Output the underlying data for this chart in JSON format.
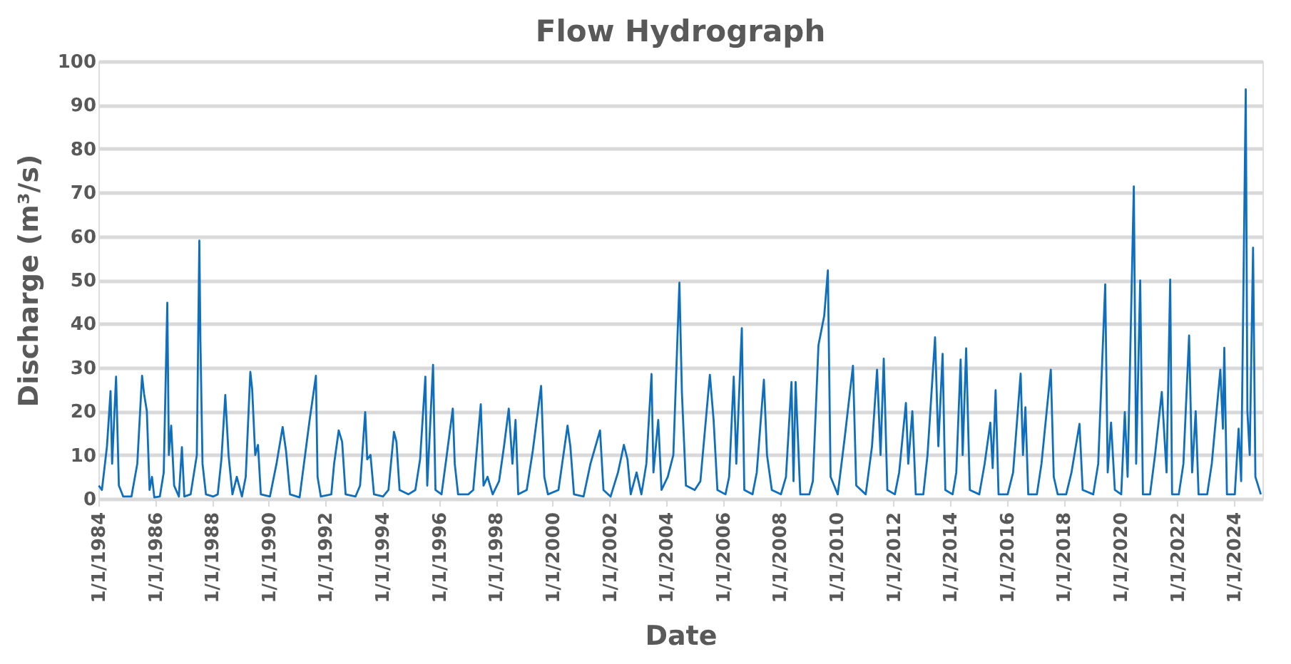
{
  "chart_data": {
    "type": "line",
    "title": "Flow Hydrograph",
    "xlabel": "Date",
    "ylabel": "Discharge (m³/s)",
    "x": [
      "1984-01-05",
      "1984-02-15",
      "1984-04-20",
      "1984-06-05",
      "1984-06-25",
      "1984-08-15",
      "1984-09-20",
      "1984-11-15",
      "1985-03-01",
      "1985-05-15",
      "1985-07-15",
      "1985-08-10",
      "1985-09-15",
      "1985-10-20",
      "1985-11-20",
      "1985-12-20",
      "1986-03-01",
      "1986-04-20",
      "1986-06-05",
      "1986-06-25",
      "1986-07-25",
      "1986-09-01",
      "1986-11-01",
      "1986-12-10",
      "1987-01-10",
      "1987-04-01",
      "1987-06-20",
      "1987-07-22",
      "1987-08-05",
      "1987-09-01",
      "1987-10-15",
      "1988-01-15",
      "1988-03-15",
      "1988-05-01",
      "1988-06-20",
      "1988-08-01",
      "1988-09-20",
      "1988-11-15",
      "1989-01-20",
      "1989-03-10",
      "1989-05-08",
      "1989-06-01",
      "1989-07-10",
      "1989-08-15",
      "1989-09-20",
      "1990-01-15",
      "1990-04-10",
      "1990-06-28",
      "1990-08-10",
      "1990-10-01",
      "1991-02-01",
      "1991-06-10",
      "1991-08-30",
      "1991-09-20",
      "1991-11-01",
      "1992-03-15",
      "1992-04-20",
      "1992-06-18",
      "1992-08-01",
      "1992-09-15",
      "1993-01-20",
      "1993-03-20",
      "1993-05-25",
      "1993-06-20",
      "1993-08-01",
      "1993-09-15",
      "1994-01-10",
      "1994-03-20",
      "1994-05-30",
      "1994-07-01",
      "1994-08-10",
      "1994-12-01",
      "1995-03-01",
      "1995-05-01",
      "1995-07-08",
      "1995-08-01",
      "1995-10-15",
      "1995-11-15",
      "1996-02-01",
      "1996-04-01",
      "1996-06-25",
      "1996-07-20",
      "1996-09-01",
      "1997-01-10",
      "1997-03-15",
      "1997-06-20",
      "1997-07-25",
      "1997-09-15",
      "1997-11-20",
      "1998-02-10",
      "1998-04-15",
      "1998-06-15",
      "1998-08-01",
      "1998-09-10",
      "1998-10-15",
      "1999-02-01",
      "1999-04-20",
      "1999-08-05",
      "1999-09-15",
      "1999-11-01",
      "2000-03-15",
      "2000-07-10",
      "2000-08-15",
      "2000-10-01",
      "2001-02-01",
      "2001-05-01",
      "2001-09-01",
      "2001-10-15",
      "2002-01-15",
      "2002-04-20",
      "2002-07-05",
      "2002-08-20",
      "2002-10-01",
      "2002-12-15",
      "2003-02-15",
      "2003-04-20",
      "2003-06-25",
      "2003-07-20",
      "2003-09-20",
      "2003-11-01",
      "2004-01-20",
      "2004-04-01",
      "2004-06-18",
      "2004-07-20",
      "2004-09-10",
      "2005-01-01",
      "2005-03-15",
      "2005-07-15",
      "2005-09-01",
      "2005-10-20",
      "2006-02-01",
      "2006-03-20",
      "2006-05-18",
      "2006-06-20",
      "2006-08-30",
      "2006-10-01",
      "2007-01-15",
      "2007-03-10",
      "2007-06-10",
      "2007-07-20",
      "2007-09-20",
      "2008-01-15",
      "2008-03-20",
      "2008-05-30",
      "2008-06-25",
      "2008-07-22",
      "2008-09-20",
      "2009-01-15",
      "2009-03-01",
      "2009-05-12",
      "2009-07-25",
      "2009-09-10",
      "2009-10-15",
      "2010-01-15",
      "2010-04-15",
      "2010-07-30",
      "2010-09-10",
      "2011-01-10",
      "2011-04-01",
      "2011-06-05",
      "2011-07-20",
      "2011-08-30",
      "2011-10-15",
      "2012-01-20",
      "2012-03-15",
      "2012-06-10",
      "2012-07-10",
      "2012-09-01",
      "2012-10-15",
      "2013-01-20",
      "2013-03-15",
      "2013-06-20",
      "2013-08-01",
      "2013-09-25",
      "2013-10-30",
      "2014-02-01",
      "2014-03-20",
      "2014-05-15",
      "2014-06-10",
      "2014-07-25",
      "2014-09-10",
      "2015-01-10",
      "2015-03-20",
      "2015-06-01",
      "2015-07-01",
      "2015-08-08",
      "2015-09-15",
      "2016-01-10",
      "2016-03-20",
      "2016-06-25",
      "2016-07-25",
      "2016-08-25",
      "2016-10-01",
      "2017-01-20",
      "2017-03-20",
      "2017-07-18",
      "2017-08-25",
      "2017-10-15",
      "2018-02-01",
      "2018-04-10",
      "2018-07-22",
      "2018-09-01",
      "2019-01-15",
      "2019-03-20",
      "2019-06-18",
      "2019-07-20",
      "2019-09-01",
      "2019-10-20",
      "2020-01-10",
      "2020-02-25",
      "2020-04-01",
      "2020-06-20",
      "2020-07-20",
      "2020-09-10",
      "2020-10-15",
      "2021-01-15",
      "2021-03-20",
      "2021-06-15",
      "2021-08-15",
      "2021-10-01",
      "2021-10-25",
      "2022-01-20",
      "2022-03-20",
      "2022-06-01",
      "2022-07-10",
      "2022-08-25",
      "2022-10-01",
      "2023-01-20",
      "2023-03-20",
      "2023-07-08",
      "2023-08-10",
      "2023-08-28",
      "2023-10-01",
      "2024-01-10",
      "2024-02-28",
      "2024-04-01",
      "2024-05-30",
      "2024-06-20",
      "2024-07-20",
      "2024-09-01",
      "2024-10-01",
      "2024-12-10"
    ],
    "series": [
      {
        "color": "#0f6fbd",
        "values": [
          3,
          2,
          12,
          24.6,
          8,
          27.9,
          3,
          0.5,
          0.5,
          8,
          28.1,
          24,
          20,
          2,
          5,
          0.3,
          0.5,
          6,
          44.8,
          10,
          16.7,
          3,
          0.5,
          11.8,
          0.5,
          1,
          10,
          59,
          36,
          8,
          1,
          0.5,
          1,
          9,
          23.7,
          10,
          1,
          5,
          0.5,
          5,
          29,
          25,
          10,
          12.3,
          1,
          0.5,
          8,
          16.4,
          11,
          1,
          0.3,
          18,
          28.1,
          5,
          0.5,
          1,
          8,
          15.6,
          13,
          1,
          0.5,
          3,
          19.8,
          9,
          10,
          1,
          0.5,
          2,
          15.3,
          13,
          2,
          1,
          2,
          9,
          27.9,
          3,
          30.6,
          2,
          1,
          9,
          20.6,
          8,
          1,
          1,
          2,
          21.6,
          3,
          5,
          1,
          4,
          12,
          20.6,
          8,
          18,
          1,
          2,
          11,
          25.8,
          5,
          1,
          2,
          16.7,
          12,
          1,
          0.5,
          8,
          15.6,
          2,
          0.5,
          6,
          12.3,
          9,
          1,
          6,
          1,
          8,
          28.5,
          6,
          18,
          2,
          5,
          10,
          49.4,
          24.4,
          3,
          2,
          4,
          28.3,
          18,
          2,
          1,
          5,
          27.9,
          8,
          39,
          2,
          1,
          6,
          27.2,
          10,
          2,
          1,
          5,
          26.7,
          4,
          26.7,
          1,
          1,
          4,
          35.1,
          41.8,
          52.2,
          5,
          1,
          14,
          30.4,
          3,
          1,
          12,
          29.5,
          10,
          32,
          2,
          1,
          6,
          21.9,
          8,
          20,
          1,
          1,
          10,
          36.9,
          12,
          33.1,
          2,
          1,
          6,
          31.8,
          10,
          34.4,
          2,
          1,
          8,
          17.4,
          7,
          24.8,
          1,
          1,
          6,
          28.6,
          10,
          20.9,
          1,
          1,
          8,
          29.5,
          5,
          1,
          1,
          6,
          17.1,
          2,
          1,
          8,
          49,
          6,
          17.4,
          2,
          1,
          19.8,
          5,
          71.4,
          8,
          49.9,
          1,
          1,
          10,
          24.4,
          6,
          50.1,
          1,
          1,
          8,
          37.3,
          6,
          20,
          1,
          1,
          8,
          29.5,
          16,
          34.5,
          1,
          1,
          16,
          4,
          93.6,
          20,
          10,
          57.4,
          5,
          1
        ]
      }
    ],
    "xlim": [
      "1984-01-01",
      "2024-12-31"
    ],
    "xticks": [
      {
        "value": "1984-01-01",
        "label": "1/1/1984"
      },
      {
        "value": "1986-01-01",
        "label": "1/1/1986"
      },
      {
        "value": "1988-01-01",
        "label": "1/1/1988"
      },
      {
        "value": "1990-01-01",
        "label": "1/1/1990"
      },
      {
        "value": "1992-01-01",
        "label": "1/1/1992"
      },
      {
        "value": "1994-01-01",
        "label": "1/1/1994"
      },
      {
        "value": "1996-01-01",
        "label": "1/1/1996"
      },
      {
        "value": "1998-01-01",
        "label": "1/1/1998"
      },
      {
        "value": "2000-01-01",
        "label": "1/1/2000"
      },
      {
        "value": "2002-01-01",
        "label": "1/1/2002"
      },
      {
        "value": "2004-01-01",
        "label": "1/1/2004"
      },
      {
        "value": "2006-01-01",
        "label": "1/1/2006"
      },
      {
        "value": "2008-01-01",
        "label": "1/1/2008"
      },
      {
        "value": "2010-01-01",
        "label": "1/1/2010"
      },
      {
        "value": "2012-01-01",
        "label": "1/1/2012"
      },
      {
        "value": "2014-01-01",
        "label": "1/1/2014"
      },
      {
        "value": "2016-01-01",
        "label": "1/1/2016"
      },
      {
        "value": "2018-01-01",
        "label": "1/1/2018"
      },
      {
        "value": "2020-01-01",
        "label": "1/1/2020"
      },
      {
        "value": "2022-01-01",
        "label": "1/1/2022"
      },
      {
        "value": "2024-01-01",
        "label": "1/1/2024"
      }
    ],
    "ylim": [
      0,
      100
    ],
    "yticks": [
      0,
      10,
      20,
      30,
      40,
      50,
      60,
      70,
      80,
      90,
      100
    ],
    "grid": "y",
    "marker": "none",
    "line_style": "solid"
  }
}
